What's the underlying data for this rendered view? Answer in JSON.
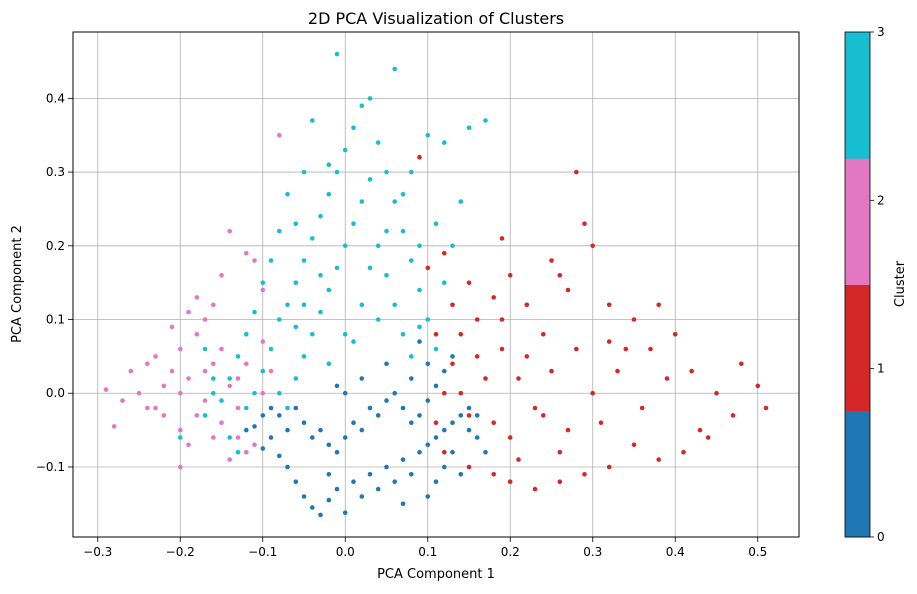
{
  "chart_data": {
    "type": "scatter",
    "title": "2D PCA Visualization of Clusters",
    "xlabel": "PCA Component 1",
    "ylabel": "PCA Component 2",
    "xlim": [
      -0.33,
      0.55
    ],
    "ylim": [
      -0.195,
      0.49
    ],
    "xticks": [
      -0.3,
      -0.2,
      -0.1,
      0.0,
      0.1,
      0.2,
      0.3,
      0.4,
      0.5
    ],
    "xtick_labels": [
      "−0.3",
      "−0.2",
      "−0.1",
      "0.0",
      "0.1",
      "0.2",
      "0.3",
      "0.4",
      "0.5"
    ],
    "yticks": [
      -0.1,
      0.0,
      0.1,
      0.2,
      0.3,
      0.4
    ],
    "ytick_labels": [
      "−0.1",
      "0.0",
      "0.1",
      "0.2",
      "0.3",
      "0.4"
    ],
    "grid": true,
    "colorbar": {
      "label": "Cluster",
      "ticks": [
        "0",
        "1",
        "2",
        "3"
      ],
      "colors": [
        "#1f77b4",
        "#d62728",
        "#e377c2",
        "#17becf"
      ]
    },
    "series": [
      {
        "cluster": 0,
        "color": "#1f77b4",
        "points": [
          [
            -0.11,
            -0.045
          ],
          [
            -0.1,
            -0.075
          ],
          [
            -0.09,
            -0.06
          ],
          [
            -0.08,
            -0.085
          ],
          [
            -0.07,
            -0.1
          ],
          [
            -0.06,
            -0.12
          ],
          [
            -0.05,
            -0.14
          ],
          [
            -0.04,
            -0.155
          ],
          [
            -0.03,
            -0.165
          ],
          [
            -0.02,
            -0.145
          ],
          [
            -0.01,
            -0.13
          ],
          [
            0.0,
            -0.162
          ],
          [
            0.01,
            -0.12
          ],
          [
            0.02,
            -0.14
          ],
          [
            0.03,
            -0.11
          ],
          [
            0.04,
            -0.13
          ],
          [
            0.05,
            -0.1
          ],
          [
            0.06,
            -0.12
          ],
          [
            0.07,
            -0.09
          ],
          [
            0.08,
            -0.11
          ],
          [
            0.09,
            -0.08
          ],
          [
            0.1,
            -0.07
          ],
          [
            0.11,
            -0.06
          ],
          [
            0.12,
            -0.05
          ],
          [
            0.13,
            -0.04
          ],
          [
            0.14,
            -0.03
          ],
          [
            0.15,
            -0.02
          ],
          [
            0.16,
            -0.03
          ],
          [
            0.17,
            -0.08
          ],
          [
            0.14,
            -0.11
          ],
          [
            -0.06,
            -0.02
          ],
          [
            -0.05,
            -0.04
          ],
          [
            -0.04,
            -0.06
          ],
          [
            -0.03,
            -0.05
          ],
          [
            -0.02,
            -0.07
          ],
          [
            -0.01,
            -0.08
          ],
          [
            0.0,
            -0.06
          ],
          [
            0.01,
            -0.04
          ],
          [
            0.02,
            -0.05
          ],
          [
            0.03,
            -0.02
          ],
          [
            0.04,
            -0.03
          ],
          [
            0.05,
            -0.01
          ],
          [
            0.06,
            0.0
          ],
          [
            0.07,
            -0.02
          ],
          [
            0.08,
            -0.04
          ],
          [
            0.09,
            -0.03
          ],
          [
            0.1,
            -0.01
          ],
          [
            0.11,
            0.01
          ],
          [
            0.12,
            0.03
          ],
          [
            0.13,
            0.05
          ],
          [
            0.0,
            0.0
          ],
          [
            -0.01,
            0.01
          ],
          [
            0.02,
            0.02
          ],
          [
            0.05,
            0.04
          ],
          [
            0.08,
            0.02
          ],
          [
            0.1,
            0.04
          ],
          [
            0.09,
            0.07
          ],
          [
            -0.08,
            -0.03
          ],
          [
            -0.07,
            -0.05
          ],
          [
            -0.09,
            -0.02
          ],
          [
            -0.1,
            -0.03
          ],
          [
            -0.12,
            -0.05
          ],
          [
            0.15,
            -0.05
          ],
          [
            0.16,
            -0.06
          ],
          [
            0.13,
            -0.08
          ],
          [
            0.12,
            -0.1
          ],
          [
            0.11,
            -0.12
          ],
          [
            0.1,
            -0.14
          ],
          [
            0.07,
            -0.15
          ],
          [
            -0.02,
            -0.11
          ]
        ]
      },
      {
        "cluster": 1,
        "color": "#d62728",
        "points": [
          [
            0.1,
            0.17
          ],
          [
            0.12,
            0.19
          ],
          [
            0.15,
            0.15
          ],
          [
            0.18,
            0.13
          ],
          [
            0.2,
            0.16
          ],
          [
            0.22,
            0.12
          ],
          [
            0.25,
            0.18
          ],
          [
            0.27,
            0.14
          ],
          [
            0.29,
            0.23
          ],
          [
            0.28,
            0.3
          ],
          [
            0.3,
            0.2
          ],
          [
            0.32,
            0.12
          ],
          [
            0.35,
            0.1
          ],
          [
            0.38,
            0.12
          ],
          [
            0.4,
            0.08
          ],
          [
            0.42,
            0.03
          ],
          [
            0.45,
            0.0
          ],
          [
            0.48,
            0.04
          ],
          [
            0.5,
            0.01
          ],
          [
            0.51,
            -0.02
          ],
          [
            0.47,
            -0.03
          ],
          [
            0.44,
            -0.06
          ],
          [
            0.41,
            -0.08
          ],
          [
            0.38,
            -0.09
          ],
          [
            0.35,
            -0.07
          ],
          [
            0.32,
            -0.1
          ],
          [
            0.29,
            -0.11
          ],
          [
            0.26,
            -0.12
          ],
          [
            0.23,
            -0.13
          ],
          [
            0.2,
            -0.12
          ],
          [
            0.18,
            -0.11
          ],
          [
            0.15,
            -0.1
          ],
          [
            0.12,
            -0.08
          ],
          [
            0.11,
            -0.04
          ],
          [
            0.12,
            0.0
          ],
          [
            0.13,
            0.04
          ],
          [
            0.14,
            0.08
          ],
          [
            0.16,
            0.1
          ],
          [
            0.19,
            0.06
          ],
          [
            0.21,
            0.02
          ],
          [
            0.23,
            -0.02
          ],
          [
            0.25,
            0.03
          ],
          [
            0.27,
            -0.05
          ],
          [
            0.3,
            0.0
          ],
          [
            0.33,
            0.03
          ],
          [
            0.36,
            -0.02
          ],
          [
            0.39,
            0.02
          ],
          [
            0.24,
            0.08
          ],
          [
            0.17,
            0.02
          ],
          [
            0.15,
            -0.03
          ],
          [
            0.2,
            -0.06
          ],
          [
            0.28,
            0.06
          ],
          [
            0.31,
            -0.04
          ],
          [
            0.34,
            0.06
          ],
          [
            0.22,
            0.05
          ],
          [
            0.18,
            -0.04
          ],
          [
            0.26,
            -0.08
          ],
          [
            0.14,
            0.0
          ],
          [
            0.16,
            0.05
          ],
          [
            0.21,
            -0.09
          ],
          [
            0.09,
            0.32
          ],
          [
            0.19,
            0.21
          ],
          [
            0.26,
            0.16
          ],
          [
            0.37,
            0.06
          ],
          [
            0.43,
            -0.05
          ],
          [
            0.32,
            0.07
          ],
          [
            0.24,
            -0.03
          ],
          [
            0.19,
            0.1
          ],
          [
            0.13,
            0.12
          ],
          [
            0.11,
            0.08
          ]
        ]
      },
      {
        "cluster": 2,
        "color": "#e377c2",
        "points": [
          [
            -0.29,
            0.005
          ],
          [
            -0.28,
            -0.045
          ],
          [
            -0.27,
            -0.01
          ],
          [
            -0.26,
            0.03
          ],
          [
            -0.25,
            0.0
          ],
          [
            -0.24,
            -0.02
          ],
          [
            -0.23,
            0.05
          ],
          [
            -0.22,
            -0.03
          ],
          [
            -0.21,
            0.09
          ],
          [
            -0.2,
            -0.05
          ],
          [
            -0.19,
            0.11
          ],
          [
            -0.18,
            0.13
          ],
          [
            -0.17,
            -0.01
          ],
          [
            -0.16,
            0.04
          ],
          [
            -0.15,
            0.16
          ],
          [
            -0.14,
            0.22
          ],
          [
            -0.13,
            -0.06
          ],
          [
            -0.12,
            0.19
          ],
          [
            -0.11,
            0.18
          ],
          [
            -0.1,
            0.07
          ],
          [
            -0.2,
            0.0
          ],
          [
            -0.19,
            0.02
          ],
          [
            -0.18,
            -0.03
          ],
          [
            -0.17,
            0.03
          ],
          [
            -0.16,
            -0.06
          ],
          [
            -0.15,
            0.06
          ],
          [
            -0.14,
            0.01
          ],
          [
            -0.13,
            -0.02
          ],
          [
            -0.12,
            0.04
          ],
          [
            -0.11,
            -0.07
          ],
          [
            -0.1,
            0.0
          ],
          [
            -0.09,
            0.03
          ],
          [
            -0.22,
            0.01
          ],
          [
            -0.21,
            0.03
          ],
          [
            -0.23,
            -0.02
          ],
          [
            -0.24,
            0.04
          ],
          [
            -0.2,
            0.06
          ],
          [
            -0.18,
            0.08
          ],
          [
            -0.17,
            0.1
          ],
          [
            -0.16,
            0.12
          ],
          [
            -0.19,
            -0.07
          ],
          [
            -0.2,
            -0.1
          ],
          [
            -0.14,
            -0.09
          ],
          [
            -0.12,
            -0.08
          ],
          [
            -0.15,
            -0.04
          ],
          [
            -0.13,
            0.02
          ],
          [
            -0.08,
            0.35
          ],
          [
            -0.1,
            0.14
          ]
        ]
      },
      {
        "cluster": 3,
        "color": "#17becf",
        "points": [
          [
            -0.1,
            0.03
          ],
          [
            -0.09,
            0.06
          ],
          [
            -0.08,
            0.1
          ],
          [
            -0.07,
            0.12
          ],
          [
            -0.06,
            0.15
          ],
          [
            -0.05,
            0.18
          ],
          [
            -0.04,
            0.21
          ],
          [
            -0.03,
            0.24
          ],
          [
            -0.02,
            0.27
          ],
          [
            -0.01,
            0.3
          ],
          [
            0.0,
            0.33
          ],
          [
            0.01,
            0.36
          ],
          [
            0.02,
            0.39
          ],
          [
            0.03,
            0.4
          ],
          [
            0.04,
            0.34
          ],
          [
            0.05,
            0.3
          ],
          [
            0.06,
            0.26
          ],
          [
            0.07,
            0.22
          ],
          [
            0.08,
            0.18
          ],
          [
            0.09,
            0.14
          ],
          [
            0.1,
            0.1
          ],
          [
            0.11,
            0.06
          ],
          [
            0.12,
            0.15
          ],
          [
            0.13,
            0.2
          ],
          [
            0.14,
            0.26
          ],
          [
            0.15,
            0.36
          ],
          [
            0.17,
            0.37
          ],
          [
            0.08,
            0.3
          ],
          [
            0.1,
            0.35
          ],
          [
            -0.01,
            0.46
          ],
          [
            0.06,
            0.44
          ],
          [
            -0.04,
            0.37
          ],
          [
            -0.05,
            0.3
          ],
          [
            -0.07,
            0.27
          ],
          [
            -0.08,
            0.22
          ],
          [
            -0.09,
            0.18
          ],
          [
            -0.1,
            0.15
          ],
          [
            -0.11,
            0.11
          ],
          [
            -0.12,
            0.08
          ],
          [
            -0.13,
            0.05
          ],
          [
            -0.14,
            0.02
          ],
          [
            -0.15,
            -0.01
          ],
          [
            -0.16,
            0.02
          ],
          [
            -0.17,
            -0.03
          ],
          [
            -0.12,
            -0.02
          ],
          [
            -0.11,
            0.0
          ],
          [
            -0.06,
            0.02
          ],
          [
            -0.05,
            0.05
          ],
          [
            -0.04,
            0.08
          ],
          [
            -0.03,
            0.11
          ],
          [
            -0.02,
            0.14
          ],
          [
            -0.01,
            0.17
          ],
          [
            0.0,
            0.2
          ],
          [
            0.01,
            0.23
          ],
          [
            0.02,
            0.26
          ],
          [
            0.03,
            0.29
          ],
          [
            0.04,
            0.2
          ],
          [
            0.05,
            0.16
          ],
          [
            0.06,
            0.12
          ],
          [
            0.07,
            0.08
          ],
          [
            0.08,
            0.05
          ],
          [
            0.09,
            0.09
          ],
          [
            0.0,
            0.08
          ],
          [
            -0.02,
            0.04
          ],
          [
            0.02,
            0.12
          ],
          [
            0.04,
            0.1
          ],
          [
            -0.06,
            0.09
          ],
          [
            -0.08,
            0.0
          ],
          [
            -0.07,
            -0.02
          ],
          [
            0.11,
            0.23
          ],
          [
            -0.02,
            0.31
          ],
          [
            -0.06,
            0.23
          ],
          [
            0.03,
            0.17
          ],
          [
            0.05,
            0.22
          ],
          [
            -0.03,
            0.16
          ],
          [
            0.07,
            0.27
          ],
          [
            0.01,
            0.07
          ],
          [
            -0.05,
            0.12
          ],
          [
            0.09,
            0.2
          ],
          [
            0.12,
            0.34
          ],
          [
            -0.16,
            0.0
          ],
          [
            -0.2,
            -0.06
          ],
          [
            -0.14,
            -0.06
          ],
          [
            -0.17,
            0.06
          ],
          [
            -0.13,
            -0.08
          ]
        ]
      }
    ]
  }
}
